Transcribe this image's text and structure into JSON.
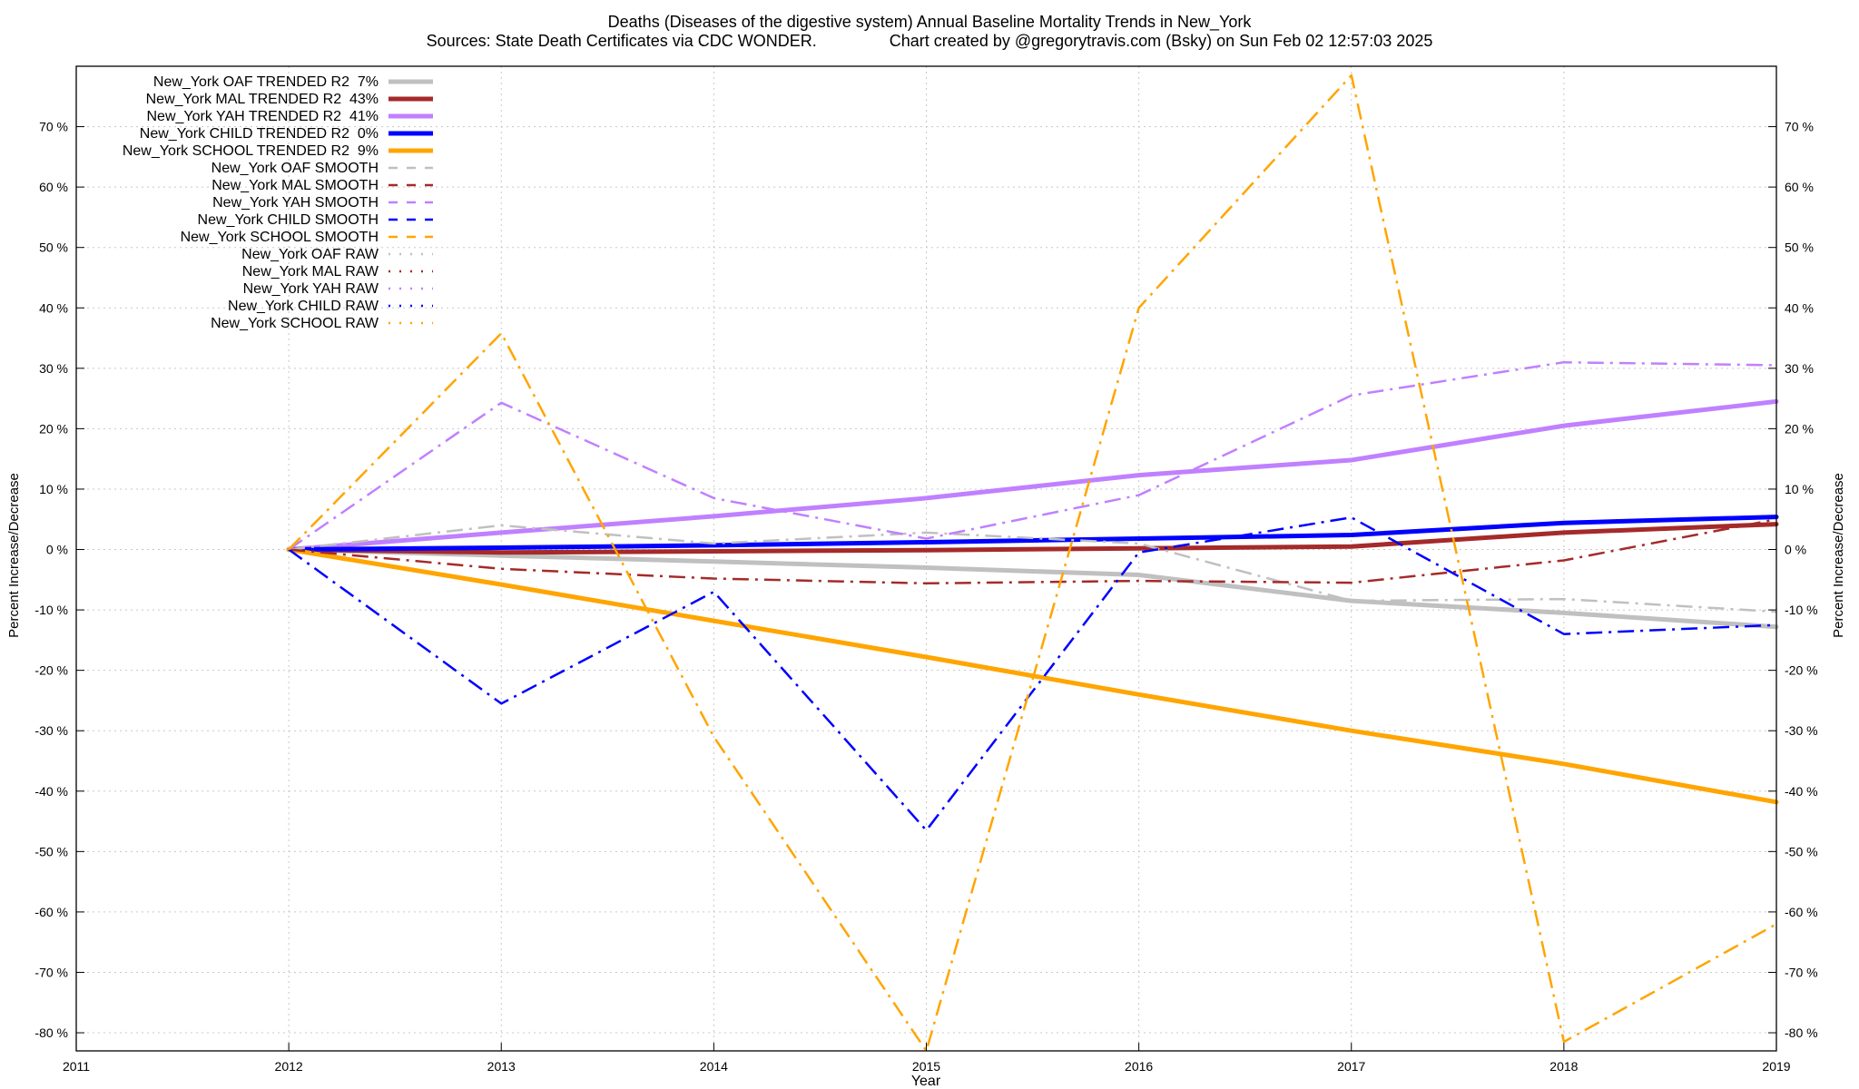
{
  "chart_data": {
    "type": "line",
    "title": "Deaths (Diseases of the digestive system)  Annual Baseline Mortality Trends in New_York",
    "subtitle": "Sources: State Death Certificates via CDC WONDER.                Chart created by @gregorytravis.com (Bsky) on Sun Feb 02 12:57:03 2025",
    "xlabel": "Year",
    "ylabel": "Percent Increase/Decrease",
    "ylabel_right": "Percent Increase/Decrease",
    "xlim": [
      2011,
      2019
    ],
    "ylim": [
      -83,
      80
    ],
    "grid": true,
    "legend_position": "top-left",
    "x_ticks": [
      2011,
      2012,
      2013,
      2014,
      2015,
      2016,
      2017,
      2018,
      2019
    ],
    "y_ticks": [
      {
        "value": 70,
        "label_left": "70 %",
        "label_right": "70 %"
      },
      {
        "value": 60,
        "label_left": "60 %",
        "label_right": "60 %"
      },
      {
        "value": 50,
        "label_left": "50 %",
        "label_right": "50 %"
      },
      {
        "value": 40,
        "label_left": "40 %",
        "label_right": "40 %"
      },
      {
        "value": 30,
        "label_left": "30 %",
        "label_right": "30 %"
      },
      {
        "value": 20,
        "label_left": "20 %",
        "label_right": "20 %"
      },
      {
        "value": 10,
        "label_left": "10 %",
        "label_right": "10 %"
      },
      {
        "value": 0,
        "label_left": "0 %",
        "label_right": "0 %"
      },
      {
        "value": -10,
        "label_left": "-10 %",
        "label_right": "-10 %"
      },
      {
        "value": -20,
        "label_left": "-20 %",
        "label_right": "-20 %"
      },
      {
        "value": -30,
        "label_left": "-30 %",
        "label_right": "-30 %"
      },
      {
        "value": -40,
        "label_left": "-40 %",
        "label_right": "-40 %"
      },
      {
        "value": -50,
        "label_left": "-50 %",
        "label_right": "-50 %"
      },
      {
        "value": -60,
        "label_left": "-60 %",
        "label_right": "-60 %"
      },
      {
        "value": -70,
        "label_left": "-70 %",
        "label_right": "-70 %"
      },
      {
        "value": -80,
        "label_left": "-80 %",
        "label_right": "-80 %"
      }
    ],
    "series": [
      {
        "name": "New_York OAF TRENDED R2  7%",
        "color": "#c0c0c0",
        "style": "solid",
        "width": 5,
        "x": [
          2012,
          2013,
          2014,
          2015,
          2016,
          2017,
          2018,
          2019
        ],
        "y": [
          0,
          -1.0,
          -2.0,
          -3.0,
          -4.2,
          -8.5,
          -10.5,
          -12.8
        ]
      },
      {
        "name": "New_York MAL TRENDED R2  43%",
        "color": "#a52a2a",
        "style": "solid",
        "width": 5,
        "x": [
          2012,
          2013,
          2014,
          2015,
          2016,
          2017,
          2018,
          2019
        ],
        "y": [
          0,
          -0.5,
          -0.3,
          -0.1,
          0.2,
          0.5,
          2.8,
          4.2
        ]
      },
      {
        "name": "New_York YAH TRENDED R2  41%",
        "color": "#c080ff",
        "style": "solid",
        "width": 5,
        "x": [
          2012,
          2013,
          2014,
          2015,
          2016,
          2017,
          2018,
          2019
        ],
        "y": [
          0,
          2.8,
          5.5,
          8.5,
          12.3,
          14.8,
          20.5,
          24.5
        ]
      },
      {
        "name": "New_York CHILD TRENDED R2  0%",
        "color": "#0000ff",
        "style": "solid",
        "width": 5,
        "x": [
          2012,
          2013,
          2014,
          2015,
          2016,
          2017,
          2018,
          2019
        ],
        "y": [
          0,
          0.3,
          0.7,
          1.2,
          1.8,
          2.4,
          4.4,
          5.4
        ]
      },
      {
        "name": "New_York SCHOOL TRENDED R2  9%",
        "color": "#ffa500",
        "style": "solid",
        "width": 5,
        "x": [
          2012,
          2013,
          2014,
          2015,
          2016,
          2017,
          2018,
          2019
        ],
        "y": [
          0,
          -5.8,
          -11.8,
          -17.8,
          -24.0,
          -30.0,
          -35.5,
          -41.8
        ]
      },
      {
        "name": "New_York OAF SMOOTH",
        "color": "#c0c0c0",
        "style": "dashdot",
        "width": 2.5,
        "x": [
          2012,
          2013,
          2014,
          2015,
          2016,
          2017,
          2018,
          2019
        ],
        "y": [
          0,
          4.0,
          1.0,
          2.8,
          1.0,
          -8.5,
          -8.2,
          -10.3
        ]
      },
      {
        "name": "New_York MAL SMOOTH",
        "color": "#a52a2a",
        "style": "dashdot",
        "width": 2.5,
        "x": [
          2012,
          2013,
          2014,
          2015,
          2016,
          2017,
          2018,
          2019
        ],
        "y": [
          0,
          -3.2,
          -4.8,
          -5.6,
          -5.2,
          -5.5,
          -1.8,
          5.0
        ]
      },
      {
        "name": "New_York YAH SMOOTH",
        "color": "#c080ff",
        "style": "dashdot",
        "width": 2.5,
        "x": [
          2012,
          2013,
          2014,
          2015,
          2016,
          2017,
          2018,
          2019
        ],
        "y": [
          0,
          24.3,
          8.5,
          1.8,
          9.0,
          25.5,
          31.0,
          30.5
        ]
      },
      {
        "name": "New_York CHILD SMOOTH",
        "color": "#0000ff",
        "style": "dashdot",
        "width": 2.5,
        "x": [
          2012,
          2013,
          2014,
          2015,
          2016,
          2017,
          2018,
          2019
        ],
        "y": [
          0,
          -25.5,
          -7.0,
          -46.5,
          -0.5,
          5.3,
          -14.0,
          -12.5
        ]
      },
      {
        "name": "New_York SCHOOL SMOOTH",
        "color": "#ffa500",
        "style": "dashdot",
        "width": 2.5,
        "x": [
          2012,
          2013,
          2014,
          2015,
          2016,
          2017,
          2018,
          2019
        ],
        "y": [
          0,
          35.8,
          -31.0,
          -83.0,
          40.0,
          78.5,
          -81.5,
          -62.0
        ]
      },
      {
        "name": "New_York OAF RAW",
        "color": "#c0c0c0",
        "style": "dotted",
        "width": 2,
        "x": [],
        "y": []
      },
      {
        "name": "New_York MAL RAW",
        "color": "#a52a2a",
        "style": "dotted",
        "width": 2,
        "x": [],
        "y": []
      },
      {
        "name": "New_York YAH RAW",
        "color": "#c080ff",
        "style": "dotted",
        "width": 2,
        "x": [],
        "y": []
      },
      {
        "name": "New_York CHILD RAW",
        "color": "#0000ff",
        "style": "dotted",
        "width": 2,
        "x": [],
        "y": []
      },
      {
        "name": "New_York SCHOOL RAW",
        "color": "#ffa500",
        "style": "dotted",
        "width": 2,
        "x": [],
        "y": []
      }
    ]
  }
}
